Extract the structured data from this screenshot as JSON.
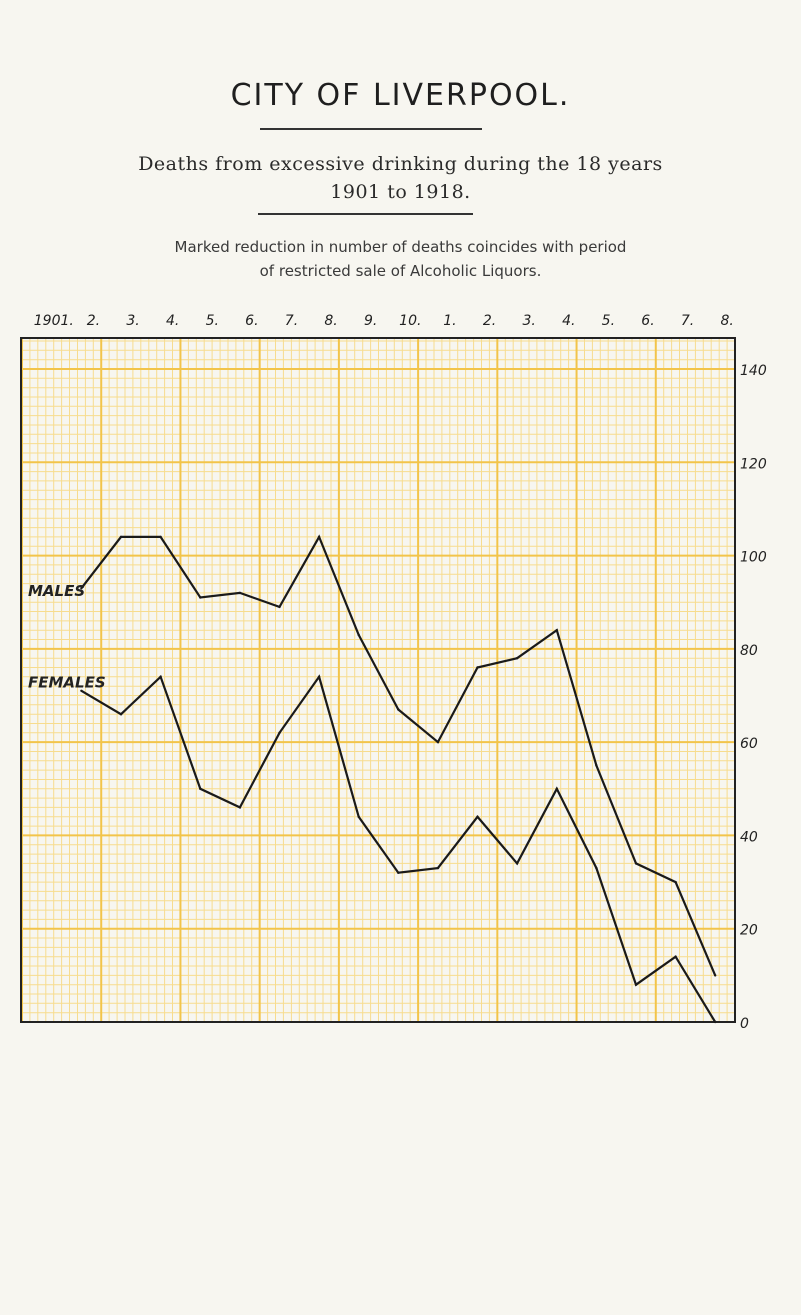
{
  "page": {
    "title": "CITY OF LIVERPOOL.",
    "subtitle_line1": "Deaths from excessive drinking during the 18 years",
    "subtitle_line2": "1901 to 1918.",
    "note_line1": "Marked reduction in number of deaths coincides with period",
    "note_line2": "of restricted sale of Alcoholic Liquors."
  },
  "colors": {
    "grid_major": "#f2c44a",
    "grid_minor": "#f7dc8e",
    "line": "#1a1a1a",
    "paper": "#f7f6f0"
  },
  "chart_data": {
    "type": "line",
    "title": "Deaths from excessive drinking during the 18 years 1901 to 1918.",
    "x_tick_labels": [
      "1901.",
      "2.",
      "3.",
      "4.",
      "5.",
      "6.",
      "7.",
      "8.",
      "9.",
      "10.",
      "1.",
      "2.",
      "3.",
      "4.",
      "5.",
      "6.",
      "7.",
      "8."
    ],
    "x": [
      1901,
      1902,
      1903,
      1904,
      1905,
      1906,
      1907,
      1908,
      1909,
      1910,
      1911,
      1912,
      1913,
      1914,
      1915,
      1916,
      1917,
      1918
    ],
    "ylim": [
      0,
      140
    ],
    "y_ticks": [
      0,
      20,
      40,
      60,
      80,
      100,
      120,
      140
    ],
    "y_tick_labels": [
      "0",
      "20",
      "40",
      "60",
      "80",
      "100",
      "120",
      "140"
    ],
    "grid": true,
    "series": [
      {
        "name": "MALES",
        "values": [
          null,
          93,
          104,
          104,
          91,
          92,
          89,
          104,
          83,
          67,
          60,
          76,
          78,
          84,
          55,
          34,
          30,
          10
        ]
      },
      {
        "name": "FEMALES",
        "values": [
          null,
          71,
          66,
          74,
          50,
          46,
          62,
          74,
          44,
          32,
          33,
          44,
          34,
          50,
          33,
          8,
          14,
          0
        ]
      }
    ]
  }
}
